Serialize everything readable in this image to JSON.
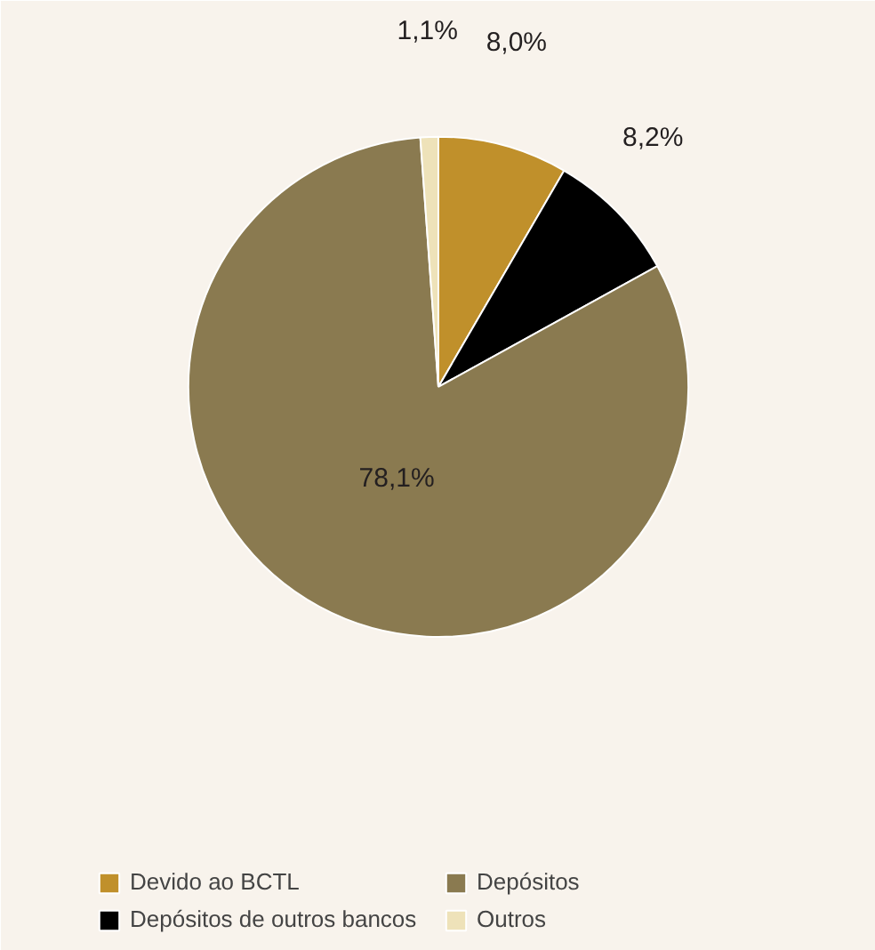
{
  "chart_data": {
    "type": "pie",
    "categories": [
      "Devido ao BCTL",
      "Depósitos de outros bancos",
      "Depósitos",
      "Outros"
    ],
    "values": [
      8.0,
      8.2,
      78.1,
      1.1
    ],
    "colors": [
      "#c0902b",
      "#000000",
      "#8a7a50",
      "#eee2b9"
    ],
    "value_labels": [
      "8,0%",
      "8,2%",
      "78,1%",
      "1,1%"
    ],
    "legend": "bottom"
  }
}
